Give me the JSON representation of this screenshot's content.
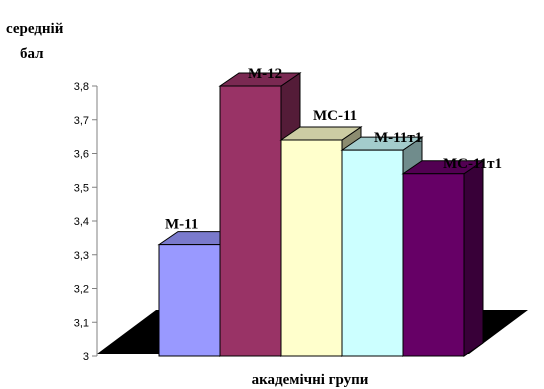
{
  "chart_data": {
    "type": "bar",
    "style": "3d",
    "title": "",
    "ylabel_line1": "середній",
    "ylabel_line2": "бал",
    "xlabel": "академічні групи",
    "ylim": [
      3,
      3.8
    ],
    "y_ticks": [
      "3",
      "3,1",
      "3,2",
      "3,3",
      "3,4",
      "3,5",
      "3,6",
      "3,7",
      "3,8"
    ],
    "categories": [
      "М-11",
      "М-12",
      "МС-11",
      "М-11т1",
      "МС-11т1"
    ],
    "values": [
      3.33,
      3.8,
      3.64,
      3.61,
      3.54
    ],
    "colors": [
      "#9999ff",
      "#993366",
      "#ffffcc",
      "#ccffff",
      "#660066"
    ],
    "grid": false,
    "legend": "none"
  }
}
